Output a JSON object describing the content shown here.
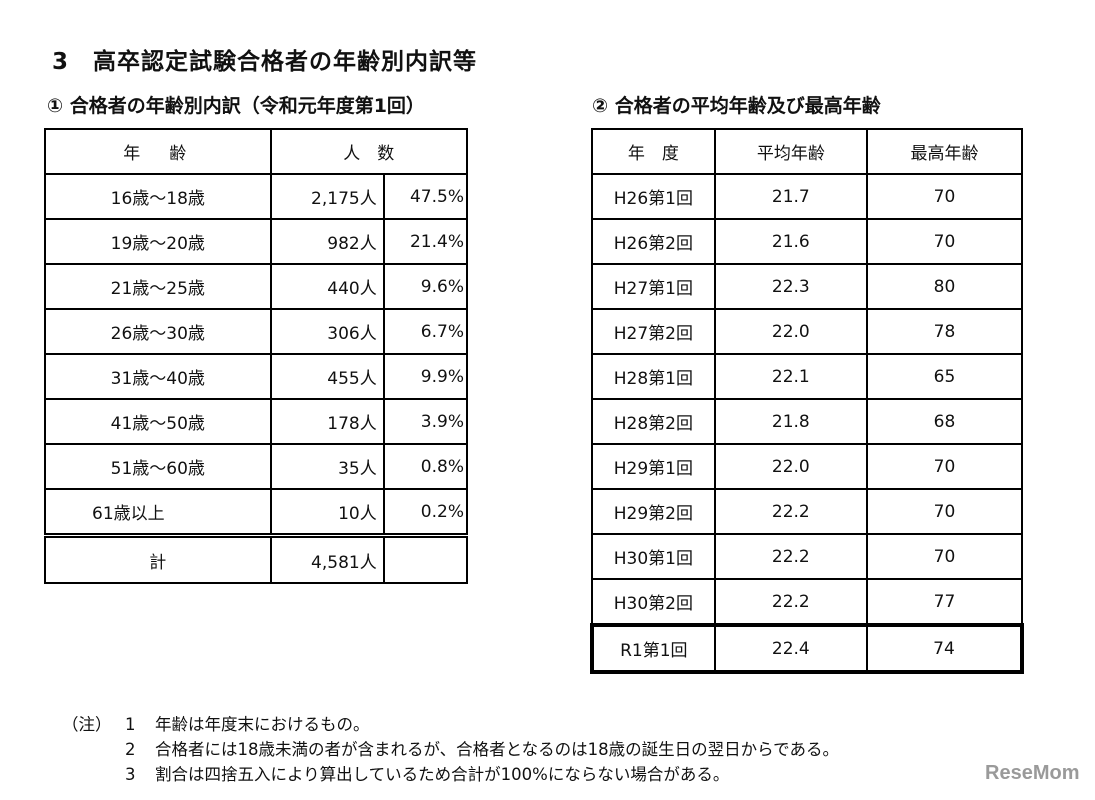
{
  "title": "3　高卒認定試験合格者の年齢別内訳等",
  "section1": {
    "heading": "① 合格者の年齢別内訳（令和元年度第1回）",
    "headers": {
      "age": "年　齢",
      "count": "人　数"
    },
    "rows": [
      {
        "age": "16歳～18歳",
        "count": "2,175人",
        "pct": "47.5%"
      },
      {
        "age": "19歳～20歳",
        "count": "982人",
        "pct": "21.4%"
      },
      {
        "age": "21歳～25歳",
        "count": "440人",
        "pct": "9.6%"
      },
      {
        "age": "26歳～30歳",
        "count": "306人",
        "pct": "6.7%"
      },
      {
        "age": "31歳～40歳",
        "count": "455人",
        "pct": "9.9%"
      },
      {
        "age": "41歳～50歳",
        "count": "178人",
        "pct": "3.9%"
      },
      {
        "age": "51歳～60歳",
        "count": "35人",
        "pct": "0.8%"
      },
      {
        "age": "61歳以上",
        "count": "10人",
        "pct": "0.2%"
      }
    ],
    "total": {
      "label": "計",
      "count": "4,581人",
      "pct": ""
    }
  },
  "section2": {
    "heading": "② 合格者の平均年齢及び最高年齢",
    "headers": {
      "year": "年　度",
      "avg": "平均年齢",
      "max": "最高年齢"
    },
    "rows": [
      {
        "year": "H26第1回",
        "avg": "21.7",
        "max": "70"
      },
      {
        "year": "H26第2回",
        "avg": "21.6",
        "max": "70"
      },
      {
        "year": "H27第1回",
        "avg": "22.3",
        "max": "80"
      },
      {
        "year": "H27第2回",
        "avg": "22.0",
        "max": "78"
      },
      {
        "year": "H28第1回",
        "avg": "22.1",
        "max": "65"
      },
      {
        "year": "H28第2回",
        "avg": "21.8",
        "max": "68"
      },
      {
        "year": "H29第1回",
        "avg": "22.0",
        "max": "70"
      },
      {
        "year": "H29第2回",
        "avg": "22.2",
        "max": "70"
      },
      {
        "year": "H30第1回",
        "avg": "22.2",
        "max": "70"
      },
      {
        "year": "H30第2回",
        "avg": "22.2",
        "max": "77"
      },
      {
        "year": "R1第1回",
        "avg": "22.4",
        "max": "74"
      }
    ]
  },
  "notes": {
    "label": "（注）",
    "items": [
      {
        "num": "1",
        "text": "年齢は年度末におけるもの。"
      },
      {
        "num": "2",
        "text": "合格者には18歳未満の者が含まれるが、合格者となるのは18歳の誕生日の翌日からである。"
      },
      {
        "num": "3",
        "text": "割合は四捨五入により算出しているため合計が100%にならない場合がある。"
      }
    ]
  },
  "watermark": "ReseMom"
}
